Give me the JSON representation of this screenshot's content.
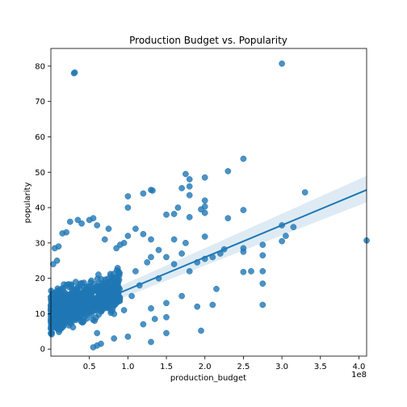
{
  "chart_data": {
    "type": "scatter",
    "title": "Production Budget vs. Popularity",
    "xlabel": "production_budget",
    "ylabel": "popularity",
    "x_offset_label": "1e8",
    "xlim": [
      0,
      4.1
    ],
    "ylim": [
      -2,
      85
    ],
    "x_ticks": [
      0.5,
      1.0,
      1.5,
      2.0,
      2.5,
      3.0,
      3.5,
      4.0
    ],
    "x_tick_labels": [
      "0.5",
      "1.0",
      "1.5",
      "2.0",
      "2.5",
      "3.0",
      "3.5",
      "4.0"
    ],
    "y_ticks": [
      0,
      10,
      20,
      30,
      40,
      50,
      60,
      70,
      80
    ],
    "y_tick_labels": [
      "0",
      "10",
      "20",
      "30",
      "40",
      "50",
      "60",
      "70",
      "80"
    ],
    "grid": false,
    "colors": {
      "points": "#1f77b4",
      "line": "#1f77b4",
      "band": "#1f77b4"
    },
    "regression": {
      "x": [
        0,
        4.1
      ],
      "y": [
        7.8,
        45.0
      ],
      "ci_upper": [
        9.0,
        49.0
      ],
      "ci_lower": [
        6.6,
        41.5
      ]
    },
    "cluster": {
      "description_only_for_script": false,
      "x_range": [
        0.0,
        0.9
      ],
      "y_range": [
        0,
        30
      ],
      "count": 900
    },
    "points": [
      [
        0.3,
        78
      ],
      [
        0.31,
        78.2
      ],
      [
        3.0,
        80.7
      ],
      [
        2.5,
        53.8
      ],
      [
        2.3,
        50.3
      ],
      [
        1.75,
        49.5
      ],
      [
        2.0,
        48.5
      ],
      [
        1.8,
        48
      ],
      [
        1.8,
        46
      ],
      [
        1.7,
        45.5
      ],
      [
        1.3,
        45
      ],
      [
        1.32,
        44.8
      ],
      [
        1.8,
        43.5
      ],
      [
        1.0,
        43.2
      ],
      [
        1.5,
        38
      ],
      [
        3.3,
        44.3
      ],
      [
        2.0,
        42
      ],
      [
        2.0,
        40.3
      ],
      [
        1.65,
        40
      ],
      [
        1.95,
        39.5
      ],
      [
        2.5,
        39.3
      ],
      [
        1.2,
        44
      ],
      [
        1.0,
        40
      ],
      [
        1.6,
        38.2
      ],
      [
        2.0,
        38.5
      ],
      [
        1.8,
        37.3
      ],
      [
        2.3,
        37
      ],
      [
        3.0,
        35
      ],
      [
        3.15,
        34.5
      ],
      [
        3.05,
        32
      ],
      [
        2.0,
        31.8
      ],
      [
        4.1,
        30.7
      ],
      [
        3.0,
        30.5
      ],
      [
        2.5,
        28.5
      ],
      [
        2.5,
        27.5
      ],
      [
        2.25,
        28.2
      ],
      [
        2.2,
        27
      ],
      [
        2.1,
        26
      ],
      [
        2.0,
        25.5
      ],
      [
        1.9,
        24.5
      ],
      [
        2.75,
        29.5
      ],
      [
        2.75,
        26.5
      ],
      [
        2.75,
        22
      ],
      [
        2.6,
        22
      ],
      [
        2.5,
        21.8
      ],
      [
        2.75,
        18.5
      ],
      [
        2.75,
        12.5
      ],
      [
        2.15,
        17
      ],
      [
        2.1,
        12.5
      ],
      [
        1.95,
        5.2
      ],
      [
        1.7,
        15
      ],
      [
        1.5,
        13
      ],
      [
        1.5,
        9
      ],
      [
        1.5,
        4.5
      ],
      [
        1.35,
        8.5
      ],
      [
        1.3,
        2
      ],
      [
        1.2,
        7
      ],
      [
        1.0,
        3.5
      ],
      [
        0.82,
        3
      ],
      [
        0.6,
        1
      ],
      [
        0.55,
        0.5
      ],
      [
        0.65,
        1.5
      ],
      [
        0.6,
        4.5
      ],
      [
        1.3,
        11.5
      ],
      [
        1.4,
        20
      ],
      [
        1.5,
        26
      ],
      [
        1.6,
        24
      ],
      [
        1.7,
        27
      ],
      [
        1.75,
        30
      ],
      [
        1.8,
        22
      ],
      [
        1.6,
        31
      ],
      [
        1.4,
        28
      ],
      [
        1.3,
        26
      ],
      [
        1.3,
        31
      ],
      [
        1.2,
        32.5
      ],
      [
        1.1,
        34
      ],
      [
        1.0,
        32
      ],
      [
        0.95,
        30
      ],
      [
        0.9,
        29.5
      ],
      [
        0.85,
        28.5
      ],
      [
        0.75,
        34
      ],
      [
        0.7,
        31
      ],
      [
        0.55,
        37
      ],
      [
        0.6,
        35
      ],
      [
        0.5,
        36.5
      ],
      [
        0.35,
        36.5
      ],
      [
        0.4,
        35.5
      ],
      [
        0.25,
        36
      ],
      [
        0.2,
        33
      ],
      [
        0.15,
        32.7
      ],
      [
        0.1,
        29
      ],
      [
        0.05,
        28.5
      ],
      [
        0.03,
        24
      ],
      [
        0.08,
        25
      ],
      [
        1.25,
        24.5
      ],
      [
        1.1,
        22
      ],
      [
        1.15,
        18
      ],
      [
        1.05,
        15
      ],
      [
        0.95,
        11
      ],
      [
        1.9,
        12
      ]
    ]
  }
}
